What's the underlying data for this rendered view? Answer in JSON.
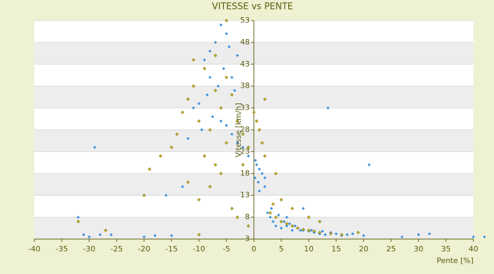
{
  "chart_data": {
    "type": "scatter",
    "title": "VITESSE vs PENTE",
    "x_label": "Pente [%]",
    "y_label": "Vitesse [km/h]",
    "xlim": [
      -40,
      40
    ],
    "ylim": [
      3,
      53
    ],
    "xticks": [
      -40,
      -35,
      -30,
      -25,
      -20,
      -15,
      -10,
      -5,
      0,
      5,
      10,
      15,
      20,
      25,
      30,
      35,
      40
    ],
    "yticks": [
      3,
      8,
      13,
      18,
      23,
      28,
      33,
      38,
      43,
      48,
      53
    ],
    "grid": true,
    "series": [
      {
        "color": "#3a8fdc",
        "x": [
          -6,
          -5,
          -4.5,
          -7,
          -8,
          -9,
          -5.5,
          -4,
          -6.5,
          -3.5,
          -8.5,
          -10,
          -11,
          -7.5,
          -5,
          -4,
          -3,
          -6,
          -9.5,
          -12,
          -2,
          -1,
          0.5,
          1,
          1.5,
          2,
          0.3,
          0.8,
          2.5,
          3,
          3.5,
          4,
          5,
          6,
          7,
          8,
          9,
          10,
          11,
          12,
          13,
          14,
          15,
          16,
          17,
          18,
          5.5,
          6.5,
          7.5,
          8.5,
          4.5,
          3.2,
          10.5,
          12.5,
          21,
          13.5,
          -28,
          -31,
          -26,
          -20,
          -15,
          -30,
          -18,
          27,
          30,
          32,
          40,
          42,
          -13,
          -16,
          20,
          9,
          1,
          0.2,
          -29,
          -32,
          -8,
          -3,
          2,
          6
        ],
        "values": [
          52,
          50,
          47,
          48,
          46,
          44,
          42,
          40,
          38,
          37,
          36,
          34,
          33,
          31,
          29,
          27,
          25,
          30,
          28,
          26,
          24,
          22,
          20,
          19,
          18,
          17,
          21,
          16,
          9,
          8,
          7,
          6,
          5.5,
          6,
          5,
          5.5,
          5,
          4.8,
          4.5,
          4.2,
          4,
          4.5,
          4.2,
          3.8,
          4,
          4.2,
          7,
          6.5,
          6,
          5,
          8.5,
          10,
          5,
          4.8,
          20,
          33,
          4,
          4,
          4,
          3.5,
          3.8,
          3.5,
          3.8,
          3.5,
          4,
          4.2,
          3.5,
          3.5,
          15,
          13,
          3.8,
          10,
          14,
          17,
          24,
          8,
          40,
          45,
          15,
          8
        ]
      },
      {
        "color": "#c9b418",
        "x": [
          -5,
          -7,
          -9,
          -11,
          -12,
          -13,
          -10,
          -8,
          -6,
          -4,
          -14,
          -15,
          -9,
          -7,
          -5,
          -3,
          -2,
          -1,
          0.5,
          1,
          1.5,
          2,
          -6,
          -8,
          -10,
          -12,
          -17,
          -19,
          -20,
          -32,
          -27,
          3,
          4,
          5,
          6,
          7,
          8,
          9,
          10,
          11,
          12,
          14,
          16,
          19,
          3.5,
          5,
          7,
          10,
          12,
          -4,
          -3,
          -1,
          -10,
          -5,
          -11,
          -7,
          2,
          0,
          4,
          -2
        ],
        "values": [
          53,
          45,
          42,
          38,
          35,
          32,
          30,
          28,
          33,
          36,
          27,
          24,
          22,
          20,
          25,
          30,
          27,
          24,
          30,
          28,
          25,
          22,
          18,
          15,
          12,
          16,
          22,
          19,
          13,
          7,
          5,
          9,
          8,
          7,
          6.5,
          6,
          5.5,
          5.2,
          5,
          4.8,
          4.5,
          4.2,
          4,
          4.5,
          11,
          12,
          10,
          8,
          7,
          10,
          8,
          6,
          4,
          40,
          44,
          37,
          35,
          32,
          18,
          20
        ]
      }
    ]
  }
}
